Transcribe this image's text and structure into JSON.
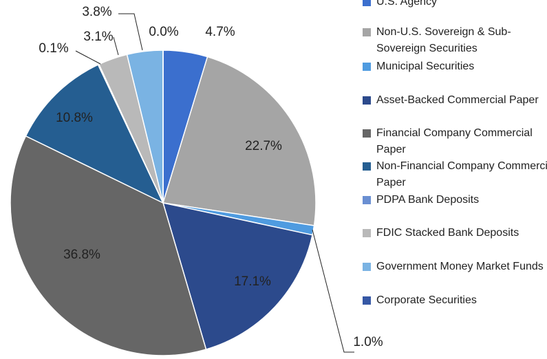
{
  "chart_data": {
    "type": "pie",
    "categories": [
      "U.S. Agency",
      "Non-U.S. Sovereign & Sub-Sovereign Securities",
      "Municipal Securities",
      "Asset-Backed Commercial Paper",
      "Financial Company Commercial Paper",
      "Non-Financial Company Commercial Paper",
      "PDPA Bank Deposits",
      "FDIC Stacked Bank Deposits",
      "Government Money Market Funds",
      "Corporate Securities"
    ],
    "values": [
      4.7,
      22.7,
      1.0,
      17.1,
      36.8,
      10.8,
      0.1,
      3.1,
      3.8,
      0.0
    ],
    "value_labels": [
      "4.7%",
      "22.7%",
      "1.0%",
      "17.1%",
      "36.8%",
      "10.8%",
      "0.1%",
      "3.1%",
      "3.8%",
      "0.0%"
    ],
    "colors": [
      "#3b6fce",
      "#a5a5a5",
      "#4f9be0",
      "#2c4a8c",
      "#666666",
      "#255e91",
      "#6a8fd2",
      "#b9b9b9",
      "#7ab3e3",
      "#3658a5"
    ]
  }
}
